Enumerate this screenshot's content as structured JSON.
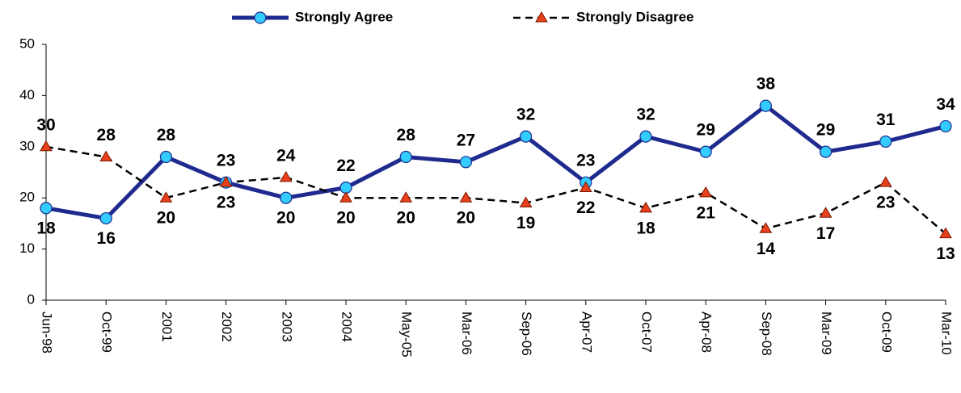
{
  "chart_data": {
    "type": "line",
    "categories": [
      "Jun-98",
      "Oct-99",
      "2001",
      "2002",
      "2003",
      "2004",
      "May-05",
      "Mar-06",
      "Sep-06",
      "Apr-07",
      "Oct-07",
      "Apr-08",
      "Sep-08",
      "Mar-09",
      "Oct-09",
      "Mar-10"
    ],
    "series": [
      {
        "name": "Strongly Agree",
        "color": "#1f2a8e",
        "marker_color": "#33ccff",
        "values": [
          18,
          16,
          28,
          23,
          20,
          22,
          28,
          27,
          32,
          23,
          32,
          29,
          38,
          29,
          31,
          34
        ]
      },
      {
        "name": "Strongly Disagree",
        "color": "#000000",
        "marker_color": "#e8401c",
        "values": [
          30,
          28,
          20,
          23,
          24,
          20,
          20,
          20,
          19,
          22,
          18,
          21,
          14,
          17,
          23,
          13
        ]
      }
    ],
    "ylim": [
      0,
      50
    ],
    "yticks": [
      0,
      10,
      20,
      30,
      40,
      50
    ],
    "legend": "top"
  }
}
